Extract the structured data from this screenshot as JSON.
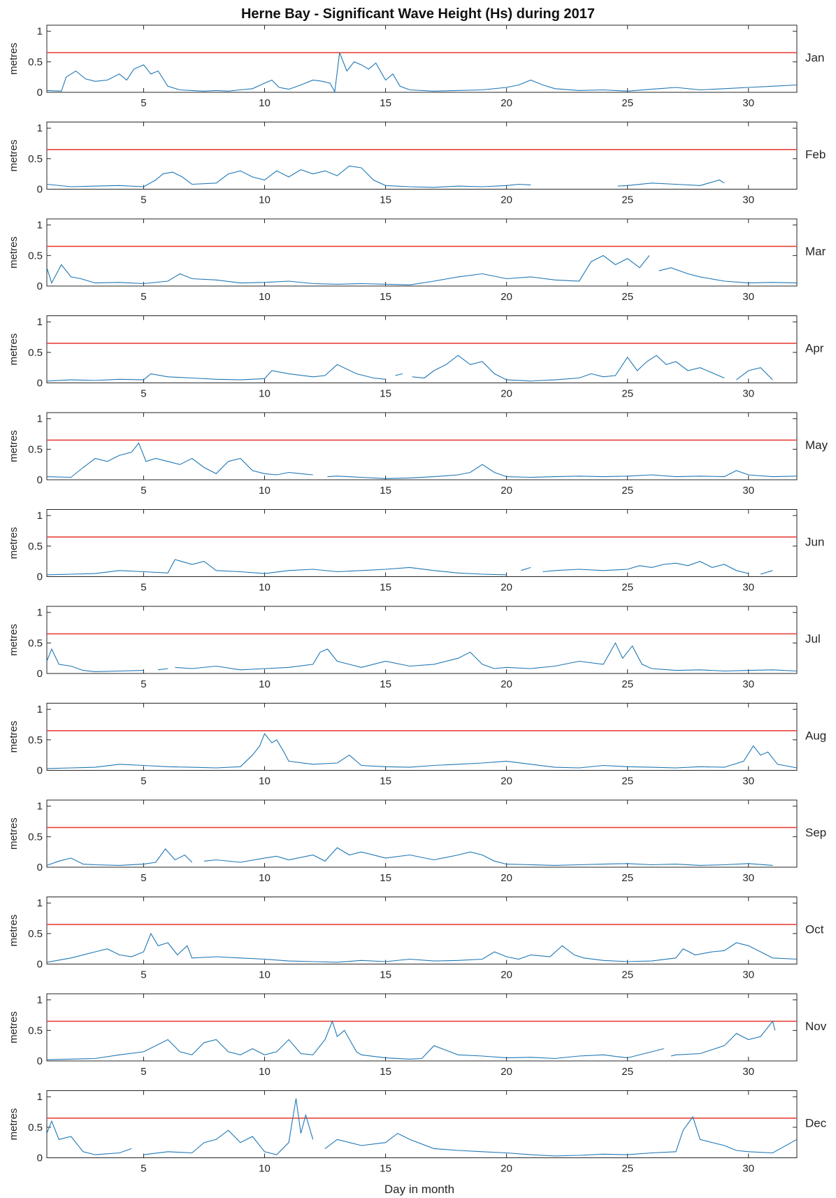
{
  "chart_data": {
    "type": "line",
    "title": "Herne Bay - Significant Wave Height (Hs) during 2017",
    "xlabel": "Day in month",
    "ylabel": "metres",
    "xlim": [
      1,
      32
    ],
    "ylim": [
      0,
      1.1
    ],
    "x_ticks": [
      5,
      10,
      15,
      20,
      25,
      30
    ],
    "y_ticks": [
      0,
      0.5,
      1
    ],
    "y_tick_labels": [
      "0",
      "0.5",
      "1"
    ],
    "threshold": 0.65,
    "line_color": "#1f77b4",
    "threshold_color": "#e8453c",
    "panels": [
      {
        "month": "Jan",
        "x": [
          1,
          1.6,
          1.8,
          2.2,
          2.6,
          3,
          3.5,
          4,
          4.3,
          4.6,
          5,
          5.3,
          5.6,
          6,
          6.5,
          7,
          7.5,
          8,
          8.5,
          9,
          9.5,
          10,
          10.3,
          10.6,
          11,
          11.5,
          12,
          12.4,
          12.7,
          12.9,
          13.1,
          13.4,
          13.7,
          14,
          14.3,
          14.6,
          15,
          15.3,
          15.6,
          16,
          17,
          18,
          19,
          20,
          20.5,
          21,
          21.5,
          22,
          23,
          24,
          25,
          26,
          27,
          28,
          29,
          30,
          31,
          32
        ],
        "y": [
          0.03,
          0.02,
          0.25,
          0.35,
          0.22,
          0.18,
          0.2,
          0.3,
          0.2,
          0.38,
          0.45,
          0.3,
          0.35,
          0.1,
          0.04,
          0.03,
          0.02,
          0.03,
          0.02,
          0.04,
          0.06,
          0.15,
          0.2,
          0.08,
          0.05,
          0.12,
          0.2,
          0.18,
          0.15,
          0.01,
          0.65,
          0.35,
          0.5,
          0.45,
          0.38,
          0.48,
          0.2,
          0.3,
          0.1,
          0.04,
          0.02,
          0.03,
          0.04,
          0.08,
          0.12,
          0.2,
          0.12,
          0.06,
          0.03,
          0.04,
          0.02,
          0.05,
          0.08,
          0.04,
          0.06,
          0.08,
          0.1,
          0.12
        ]
      },
      {
        "month": "Feb",
        "x": [
          1,
          2,
          3,
          4,
          5,
          5.5,
          5.8,
          6.2,
          6.6,
          7,
          8,
          8.5,
          9,
          9.5,
          10,
          10.5,
          11,
          11.5,
          12,
          12.5,
          13,
          13.5,
          14,
          14.5,
          15,
          16,
          17,
          18,
          19,
          20,
          20.5,
          21,
          null,
          24.6,
          25,
          26,
          27,
          28,
          28.8,
          29
        ],
        "y": [
          0.08,
          0.04,
          0.05,
          0.06,
          0.04,
          0.15,
          0.25,
          0.28,
          0.2,
          0.08,
          0.1,
          0.25,
          0.3,
          0.2,
          0.15,
          0.3,
          0.2,
          0.32,
          0.25,
          0.3,
          0.22,
          0.38,
          0.35,
          0.15,
          0.06,
          0.04,
          0.03,
          0.05,
          0.04,
          0.06,
          0.08,
          0.07,
          null,
          0.05,
          0.06,
          0.1,
          0.08,
          0.06,
          0.15,
          0.1
        ]
      },
      {
        "month": "Mar",
        "x": [
          1,
          1.2,
          1.6,
          2,
          2.4,
          3,
          4,
          5,
          6,
          6.5,
          7,
          8,
          9,
          10,
          11,
          12,
          13,
          14,
          15,
          16,
          17,
          18,
          19,
          20,
          21,
          22,
          23,
          23.5,
          24,
          24.5,
          25,
          25.5,
          25.9,
          null,
          26.3,
          26.8,
          27.5,
          28,
          29,
          30,
          31,
          32
        ],
        "y": [
          0.3,
          0.05,
          0.35,
          0.15,
          0.12,
          0.05,
          0.06,
          0.04,
          0.08,
          0.2,
          0.12,
          0.1,
          0.05,
          0.06,
          0.08,
          0.04,
          0.03,
          0.04,
          0.03,
          0.02,
          0.08,
          0.15,
          0.2,
          0.12,
          0.15,
          0.1,
          0.08,
          0.4,
          0.5,
          0.35,
          0.45,
          0.3,
          0.5,
          null,
          0.25,
          0.3,
          0.2,
          0.15,
          0.08,
          0.05,
          0.06,
          0.05
        ]
      },
      {
        "month": "Apr",
        "x": [
          1,
          2,
          3,
          4,
          5,
          5.3,
          6,
          7,
          8,
          9,
          10,
          10.3,
          11,
          12,
          12.5,
          13,
          13.8,
          14.5,
          15,
          null,
          15.4,
          15.7,
          null,
          16.1,
          16.6,
          17,
          17.5,
          18,
          18.5,
          19,
          19.5,
          20,
          21,
          22,
          23,
          23.5,
          24,
          24.5,
          25,
          25.4,
          25.8,
          26.2,
          26.6,
          27,
          27.5,
          28,
          29,
          null,
          29.5,
          30,
          30.5,
          31
        ],
        "y": [
          0.03,
          0.05,
          0.04,
          0.06,
          0.05,
          0.15,
          0.1,
          0.08,
          0.06,
          0.05,
          0.07,
          0.2,
          0.15,
          0.1,
          0.12,
          0.3,
          0.15,
          0.08,
          0.06,
          null,
          0.12,
          0.15,
          null,
          0.1,
          0.08,
          0.2,
          0.3,
          0.45,
          0.3,
          0.35,
          0.15,
          0.05,
          0.03,
          0.05,
          0.08,
          0.15,
          0.1,
          0.12,
          0.42,
          0.2,
          0.35,
          0.45,
          0.3,
          0.35,
          0.2,
          0.25,
          0.08,
          null,
          0.05,
          0.2,
          0.25,
          0.05
        ]
      },
      {
        "month": "May",
        "x": [
          1,
          2,
          2.5,
          3,
          3.5,
          4,
          4.5,
          4.8,
          5.1,
          5.5,
          6,
          6.5,
          7,
          7.5,
          8,
          8.5,
          9,
          9.5,
          10,
          10.5,
          11,
          11.5,
          12,
          null,
          12.6,
          13,
          14,
          15,
          16,
          17,
          18,
          18.5,
          19,
          19.5,
          20,
          21,
          22,
          23,
          24,
          25,
          26,
          27,
          28,
          29,
          29.5,
          30,
          31,
          32
        ],
        "y": [
          0.05,
          0.04,
          0.2,
          0.35,
          0.3,
          0.4,
          0.45,
          0.6,
          0.3,
          0.35,
          0.3,
          0.25,
          0.35,
          0.2,
          0.1,
          0.3,
          0.35,
          0.15,
          0.1,
          0.08,
          0.12,
          0.1,
          0.08,
          null,
          0.05,
          0.06,
          0.04,
          0.02,
          0.03,
          0.05,
          0.08,
          0.12,
          0.25,
          0.12,
          0.05,
          0.04,
          0.05,
          0.06,
          0.05,
          0.06,
          0.08,
          0.05,
          0.06,
          0.05,
          0.15,
          0.08,
          0.05,
          0.06
        ]
      },
      {
        "month": "Jun",
        "x": [
          1,
          2,
          3,
          4,
          5,
          6,
          6.3,
          7,
          7.5,
          8,
          9,
          10,
          11,
          12,
          13,
          14,
          15,
          16,
          17,
          18,
          19,
          20,
          null,
          20.6,
          21,
          null,
          21.5,
          22,
          23,
          24,
          25,
          25.5,
          26,
          26.5,
          27,
          27.5,
          28,
          28.5,
          29,
          29.5,
          30,
          null,
          30.5,
          31
        ],
        "y": [
          0.03,
          0.04,
          0.05,
          0.1,
          0.08,
          0.06,
          0.28,
          0.2,
          0.25,
          0.1,
          0.08,
          0.05,
          0.1,
          0.12,
          0.08,
          0.1,
          0.12,
          0.15,
          0.1,
          0.06,
          0.04,
          0.03,
          null,
          0.1,
          0.15,
          null,
          0.08,
          0.1,
          0.12,
          0.1,
          0.12,
          0.18,
          0.15,
          0.2,
          0.22,
          0.18,
          0.25,
          0.15,
          0.2,
          0.1,
          0.05,
          null,
          0.04,
          0.1
        ]
      },
      {
        "month": "Jul",
        "x": [
          1,
          1.2,
          1.5,
          2,
          2.5,
          3,
          4,
          5,
          null,
          5.6,
          6,
          null,
          6.3,
          7,
          8,
          9,
          10,
          11,
          12,
          12.3,
          12.6,
          13,
          13.5,
          14,
          15,
          16,
          17,
          18,
          18.5,
          19,
          19.5,
          20,
          21,
          22,
          23,
          24,
          24.5,
          24.8,
          25.2,
          25.6,
          26,
          27,
          28,
          29,
          30,
          31,
          32
        ],
        "y": [
          0.2,
          0.4,
          0.15,
          0.12,
          0.05,
          0.03,
          0.04,
          0.05,
          null,
          0.06,
          0.08,
          null,
          0.1,
          0.08,
          0.12,
          0.06,
          0.08,
          0.1,
          0.15,
          0.35,
          0.4,
          0.2,
          0.15,
          0.1,
          0.2,
          0.12,
          0.15,
          0.25,
          0.35,
          0.15,
          0.08,
          0.1,
          0.08,
          0.12,
          0.2,
          0.15,
          0.5,
          0.25,
          0.45,
          0.15,
          0.08,
          0.05,
          0.06,
          0.04,
          0.05,
          0.06,
          0.04
        ]
      },
      {
        "month": "Aug",
        "x": [
          1,
          2,
          3,
          4,
          5,
          6,
          7,
          8,
          9,
          9.5,
          9.8,
          10,
          10.3,
          10.5,
          10.8,
          11,
          12,
          13,
          13.5,
          14,
          15,
          16,
          17,
          18,
          19,
          20,
          21,
          22,
          23,
          24,
          25,
          26,
          27,
          28,
          29,
          29.8,
          30.2,
          30.5,
          30.8,
          31.2,
          32
        ],
        "y": [
          0.03,
          0.04,
          0.05,
          0.1,
          0.08,
          0.06,
          0.05,
          0.04,
          0.06,
          0.25,
          0.4,
          0.6,
          0.45,
          0.5,
          0.3,
          0.15,
          0.1,
          0.12,
          0.25,
          0.08,
          0.06,
          0.05,
          0.08,
          0.1,
          0.12,
          0.15,
          0.1,
          0.05,
          0.04,
          0.08,
          0.06,
          0.05,
          0.04,
          0.06,
          0.05,
          0.15,
          0.4,
          0.25,
          0.3,
          0.1,
          0.04
        ]
      },
      {
        "month": "Sep",
        "x": [
          1,
          1.5,
          2,
          2.5,
          3,
          4,
          5,
          5.5,
          5.9,
          6.3,
          6.7,
          7,
          null,
          7.5,
          8,
          9,
          10,
          10.5,
          11,
          12,
          12.5,
          13,
          13.5,
          14,
          15,
          16,
          17,
          18,
          18.5,
          19,
          19.5,
          20,
          21,
          22,
          23,
          24,
          25,
          26,
          27,
          28,
          29,
          30,
          31
        ],
        "y": [
          0.03,
          0.1,
          0.15,
          0.05,
          0.04,
          0.03,
          0.05,
          0.08,
          0.3,
          0.12,
          0.2,
          0.08,
          null,
          0.1,
          0.12,
          0.08,
          0.15,
          0.18,
          0.12,
          0.2,
          0.1,
          0.32,
          0.2,
          0.25,
          0.15,
          0.2,
          0.12,
          0.2,
          0.25,
          0.2,
          0.1,
          0.05,
          0.04,
          0.03,
          0.04,
          0.05,
          0.06,
          0.04,
          0.05,
          0.03,
          0.04,
          0.06,
          0.03
        ]
      },
      {
        "month": "Oct",
        "x": [
          1,
          2,
          3,
          3.5,
          4,
          4.5,
          5,
          5.3,
          5.6,
          6,
          6.4,
          6.8,
          7,
          8,
          9,
          10,
          11,
          12,
          13,
          14,
          15,
          16,
          17,
          18,
          19,
          19.5,
          20,
          20.5,
          21,
          21.8,
          22.3,
          22.8,
          23.2,
          24,
          25,
          26,
          27,
          27.3,
          27.8,
          28.5,
          29,
          29.5,
          30,
          30.5,
          31,
          32
        ],
        "y": [
          0.03,
          0.1,
          0.2,
          0.25,
          0.15,
          0.12,
          0.2,
          0.5,
          0.3,
          0.35,
          0.15,
          0.3,
          0.1,
          0.12,
          0.1,
          0.08,
          0.05,
          0.04,
          0.03,
          0.06,
          0.04,
          0.08,
          0.05,
          0.06,
          0.08,
          0.2,
          0.12,
          0.08,
          0.15,
          0.12,
          0.3,
          0.15,
          0.1,
          0.06,
          0.04,
          0.05,
          0.1,
          0.25,
          0.15,
          0.2,
          0.22,
          0.35,
          0.3,
          0.2,
          0.1,
          0.08
        ]
      },
      {
        "month": "Nov",
        "x": [
          1,
          2,
          3,
          4,
          5,
          5.5,
          6,
          6.5,
          7,
          7.5,
          8,
          8.5,
          9,
          9.5,
          10,
          10.5,
          11,
          11.5,
          12,
          12.5,
          12.8,
          13,
          13.3,
          13.8,
          14,
          15,
          16,
          16.5,
          17,
          18,
          19,
          20,
          21,
          22,
          23,
          24,
          25,
          26,
          26.5,
          null,
          26.8,
          27,
          28,
          29,
          29.5,
          30,
          30.5,
          31,
          31.1
        ],
        "y": [
          0.02,
          0.03,
          0.04,
          0.1,
          0.15,
          0.25,
          0.35,
          0.15,
          0.1,
          0.3,
          0.35,
          0.15,
          0.1,
          0.2,
          0.1,
          0.15,
          0.35,
          0.12,
          0.1,
          0.35,
          0.65,
          0.4,
          0.5,
          0.15,
          0.1,
          0.05,
          0.03,
          0.04,
          0.25,
          0.1,
          0.08,
          0.05,
          0.06,
          0.04,
          0.08,
          0.1,
          0.05,
          0.15,
          0.2,
          null,
          0.08,
          0.1,
          0.12,
          0.25,
          0.45,
          0.35,
          0.4,
          0.65,
          0.5
        ]
      },
      {
        "month": "Dec",
        "x": [
          1,
          1.2,
          1.5,
          2,
          2.5,
          3,
          4,
          4.5,
          null,
          5,
          6,
          7,
          7.5,
          8,
          8.5,
          9,
          9.5,
          10,
          10.5,
          11,
          11.3,
          11.5,
          11.7,
          12,
          null,
          12.5,
          13,
          14,
          15,
          15.5,
          16,
          17,
          18,
          19,
          20,
          21,
          22,
          23,
          24,
          25,
          26,
          27,
          27.3,
          27.7,
          28,
          29,
          29.5,
          30,
          31,
          32
        ],
        "y": [
          0.4,
          0.6,
          0.3,
          0.35,
          0.1,
          0.05,
          0.08,
          0.15,
          null,
          0.05,
          0.1,
          0.08,
          0.25,
          0.3,
          0.45,
          0.25,
          0.35,
          0.1,
          0.05,
          0.25,
          0.97,
          0.4,
          0.7,
          0.3,
          null,
          0.15,
          0.3,
          0.2,
          0.25,
          0.4,
          0.3,
          0.15,
          0.12,
          0.1,
          0.08,
          0.05,
          0.03,
          0.04,
          0.06,
          0.05,
          0.08,
          0.1,
          0.45,
          0.67,
          0.3,
          0.2,
          0.12,
          0.1,
          0.08,
          0.3
        ]
      }
    ]
  }
}
